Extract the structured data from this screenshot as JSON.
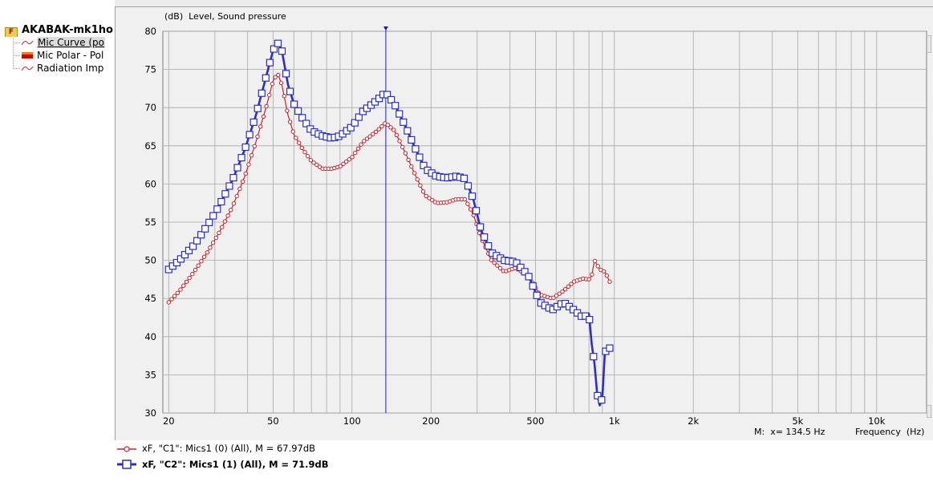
{
  "tree": {
    "root_label": "AKABAK-mk1ho",
    "root_icon": "folder-icon",
    "items": [
      {
        "label": "Mic Curve (po",
        "icon": "curve-icon",
        "selected": true
      },
      {
        "label": "Mic Polar - Pol",
        "icon": "polar-map-icon",
        "selected": false
      },
      {
        "label": "Radiation Imp",
        "icon": "curve-icon",
        "selected": false
      }
    ]
  },
  "chart_data": {
    "type": "line",
    "ylabel_unit": "(dB)",
    "ylabel": "Level, Sound pressure",
    "xlabel": "Frequency",
    "xlabel_unit": "(Hz)",
    "x_scale": "log",
    "xlim": [
      19,
      15500
    ],
    "ylim": [
      30,
      80
    ],
    "yticks": [
      30,
      35,
      40,
      45,
      50,
      55,
      60,
      65,
      70,
      75,
      80
    ],
    "xticks": [
      {
        "value": 20,
        "label": "20"
      },
      {
        "value": 50,
        "label": "50"
      },
      {
        "value": 100,
        "label": "100"
      },
      {
        "value": 200,
        "label": "200"
      },
      {
        "value": 500,
        "label": "500"
      },
      {
        "value": 1000,
        "label": "1k"
      },
      {
        "value": 2000,
        "label": "2k"
      },
      {
        "value": 5000,
        "label": "5k"
      },
      {
        "value": 10000,
        "label": "10k"
      }
    ],
    "grid": true,
    "cursor": {
      "x": 134.5,
      "label": "M:  x= 134.5 Hz"
    },
    "series": [
      {
        "name": "xF, \"C1\": Mics1 (0)  (All), M = 67.97dB",
        "color": "#c0272d",
        "marker": "circle",
        "x": [
          20,
          22,
          25,
          28,
          31,
          35,
          39,
          43,
          47,
          50,
          52,
          54,
          57,
          60,
          65,
          70,
          77,
          84,
          90,
          100,
          110,
          125,
          134,
          145,
          160,
          175,
          190,
          210,
          230,
          250,
          270,
          290,
          310,
          340,
          380,
          420,
          470,
          520,
          580,
          640,
          700,
          760,
          800,
          820,
          840,
          880,
          920,
          960
        ],
        "y": [
          44.5,
          46,
          48.5,
          51,
          53.5,
          57,
          61,
          65.5,
          70,
          73.5,
          74.5,
          73,
          69,
          66.5,
          64.5,
          63,
          62,
          62,
          62.3,
          63.5,
          65.5,
          67,
          68,
          67,
          64,
          61,
          58.5,
          57.5,
          57.6,
          58,
          58,
          56,
          53,
          50,
          48.5,
          49,
          48,
          45.5,
          45,
          46,
          47.2,
          47.6,
          47.5,
          48,
          50,
          48.8,
          48.5,
          47.2
        ]
      },
      {
        "name": "xF, \"C2\": Mics1 (1)  (All), M = 71.9dB",
        "color": "#2b2fc4",
        "marker": "square",
        "x": [
          20,
          22,
          25,
          28,
          31,
          35,
          39,
          43,
          47,
          50,
          52,
          54,
          57,
          60,
          65,
          70,
          77,
          84,
          90,
          100,
          110,
          125,
          134,
          145,
          160,
          175,
          190,
          210,
          230,
          250,
          270,
          290,
          310,
          340,
          380,
          420,
          470,
          520,
          580,
          640,
          700,
          760,
          800,
          820,
          840,
          860,
          880,
          900,
          920,
          960
        ],
        "y": [
          48.8,
          50,
          52,
          54.5,
          57,
          60.5,
          64.5,
          69,
          74,
          77.5,
          78.5,
          77.5,
          73,
          70.5,
          68.5,
          67,
          66.3,
          66,
          66.3,
          67.5,
          69.5,
          71,
          72,
          70.5,
          67.5,
          64.5,
          62,
          61,
          60.8,
          61,
          60.7,
          58,
          54,
          51,
          50,
          49.8,
          48,
          44.5,
          43.5,
          44.5,
          43.5,
          42.5,
          43,
          39,
          36.5,
          32.5,
          31,
          32,
          38,
          38.5
        ]
      }
    ]
  }
}
